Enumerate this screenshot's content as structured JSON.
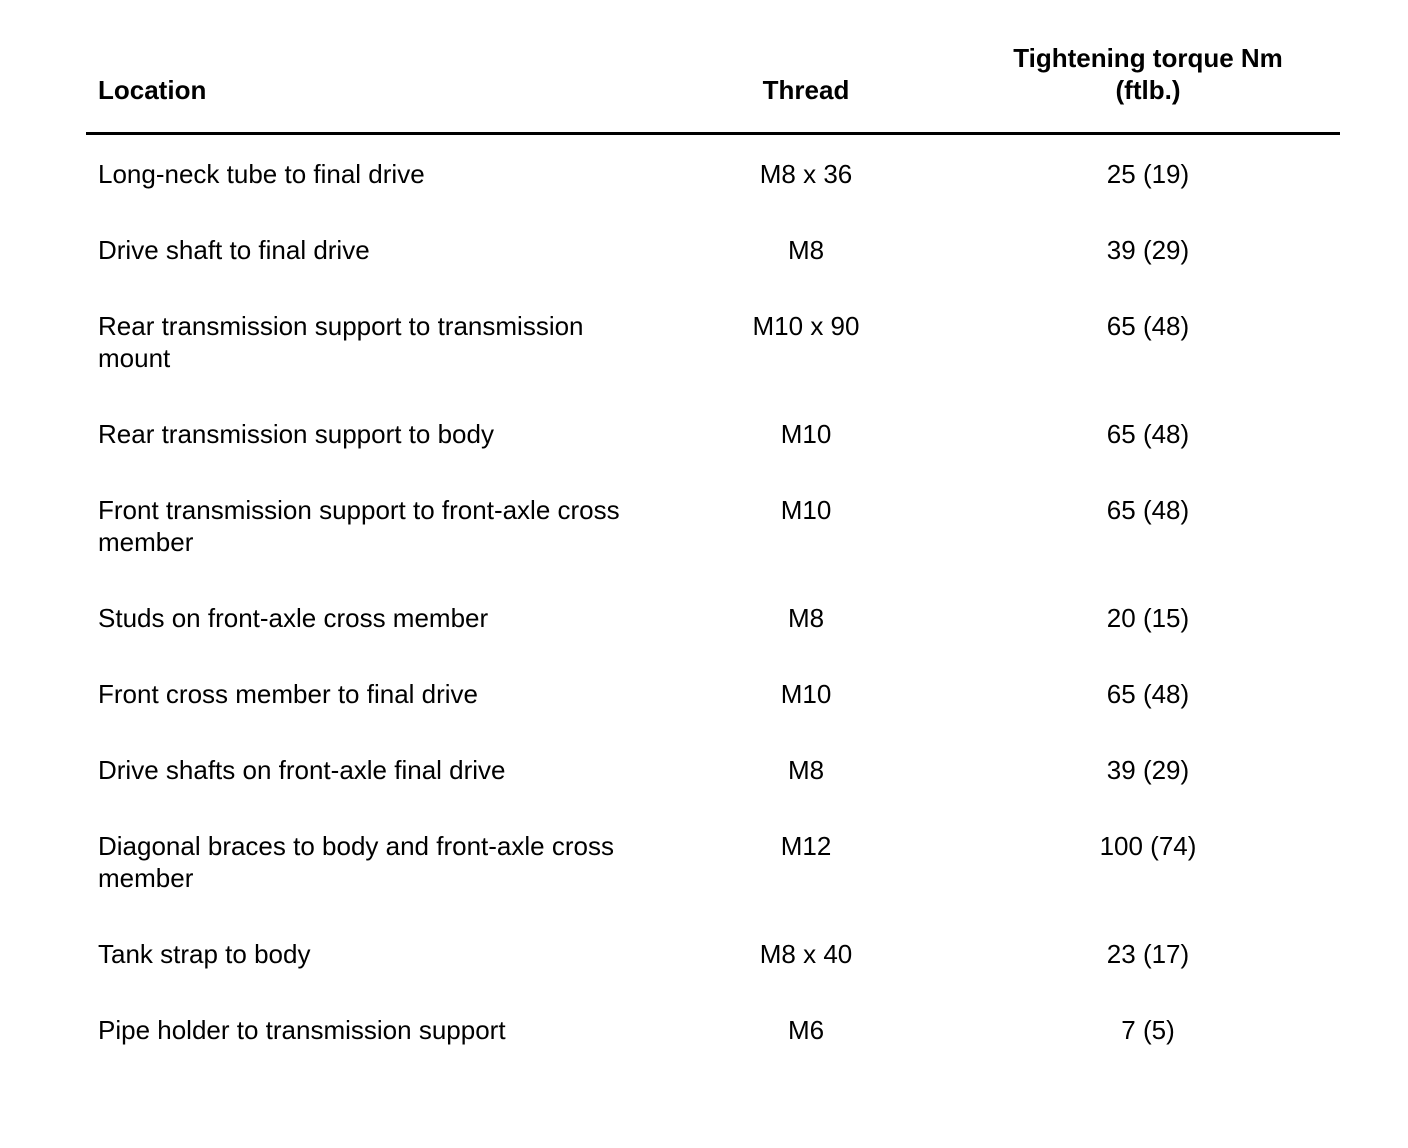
{
  "table": {
    "headers": {
      "location": "Location",
      "thread": "Thread",
      "torque_line1": "Tightening torque Nm",
      "torque_line2": "(ftlb.)"
    },
    "rows": [
      {
        "location": "Long-neck tube to final drive",
        "thread": "M8 x 36",
        "torque": "25 (19)"
      },
      {
        "location": "Drive shaft to final drive",
        "thread": "M8",
        "torque": "39 (29)"
      },
      {
        "location": "Rear transmission support to transmission mount",
        "thread": "M10 x 90",
        "torque": "65 (48)"
      },
      {
        "location": "Rear transmission support to body",
        "thread": "M10",
        "torque": "65 (48)"
      },
      {
        "location": "Front transmission support to front-axle cross member",
        "thread": "M10",
        "torque": "65 (48)"
      },
      {
        "location": "Studs on front-axle cross member",
        "thread": "M8",
        "torque": "20 (15)"
      },
      {
        "location": "Front cross member to final drive",
        "thread": "M10",
        "torque": "65 (48)"
      },
      {
        "location": "Drive shafts on front-axle final drive",
        "thread": "M8",
        "torque": "39 (29)"
      },
      {
        "location": "Diagonal braces to body and front-axle cross member",
        "thread": "M12",
        "torque": "100 (74)"
      },
      {
        "location": "Tank strap to body",
        "thread": "M8 x 40",
        "torque": "23 (17)"
      },
      {
        "location": "Pipe holder to transmission support",
        "thread": "M6",
        "torque": "7 (5)"
      }
    ]
  }
}
